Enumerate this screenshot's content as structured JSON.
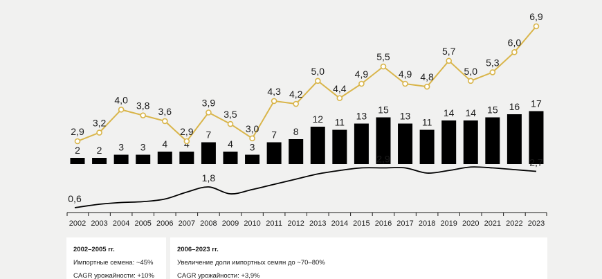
{
  "chart_data": {
    "type": "bar+line",
    "categories": [
      "2002",
      "2003",
      "2004",
      "2005",
      "2006",
      "2007",
      "2008",
      "2009",
      "2010",
      "2011",
      "2012",
      "2013",
      "2014",
      "2015",
      "2016",
      "2017",
      "2018",
      "2019",
      "2020",
      "2021",
      "2022",
      "2023"
    ],
    "series": [
      {
        "name": "top-line",
        "type": "line",
        "color": "#d9b54a",
        "values": [
          2.9,
          3.2,
          4.0,
          3.8,
          3.6,
          2.9,
          3.9,
          3.5,
          3.0,
          4.3,
          4.2,
          5.0,
          4.4,
          4.9,
          5.5,
          4.9,
          4.8,
          5.7,
          5.0,
          5.3,
          6.0,
          6.9
        ],
        "labels": [
          "2,9",
          "3,2",
          "4,0",
          "3,8",
          "3,6",
          "2,9",
          "3,9",
          "3,5",
          "3,0",
          "4,3",
          "4,2",
          "5,0",
          "4,4",
          "4,9",
          "5,5",
          "4,9",
          "4,8",
          "5,7",
          "5,0",
          "5,3",
          "6,0",
          "6,9"
        ]
      },
      {
        "name": "bars",
        "type": "bar",
        "color": "#000000",
        "values": [
          2,
          2,
          3,
          3,
          4,
          4,
          7,
          4,
          3,
          7,
          8,
          12,
          11,
          13,
          15,
          13,
          11,
          14,
          14,
          15,
          16,
          17
        ],
        "labels": [
          "2",
          "2",
          "3",
          "3",
          "4",
          "4",
          "7",
          "4",
          "3",
          "7",
          "8",
          "12",
          "11",
          "13",
          "15",
          "13",
          "11",
          "14",
          "14",
          "15",
          "16",
          "17"
        ]
      },
      {
        "name": "bottom-curve",
        "type": "line",
        "color": "#000000",
        "values": [
          0.6,
          0.8,
          0.9,
          0.95,
          1.1,
          1.5,
          1.8,
          1.4,
          1.65,
          1.95,
          2.25,
          2.55,
          2.75,
          2.9,
          2.9,
          2.9,
          2.6,
          2.75,
          2.95,
          2.9,
          2.8,
          2.7
        ],
        "point_labels": [
          {
            "index": 0,
            "text": "0,6"
          },
          {
            "index": 6,
            "text": "1,8"
          },
          {
            "index": 14,
            "text": "2,9"
          },
          {
            "index": 21,
            "text": "2,7"
          }
        ]
      }
    ],
    "title": "",
    "xlabel": "",
    "ylabel": ""
  },
  "panels": [
    {
      "title": "2002–2005 гг.",
      "lines": [
        "Импортные семена: ~45%",
        "CAGR урожайности: +10%"
      ]
    },
    {
      "title": "2006–2023 гг.",
      "lines": [
        "Увеличение доли импортных семян до ~70–80%",
        "CAGR урожайности: +3,9%"
      ]
    }
  ]
}
